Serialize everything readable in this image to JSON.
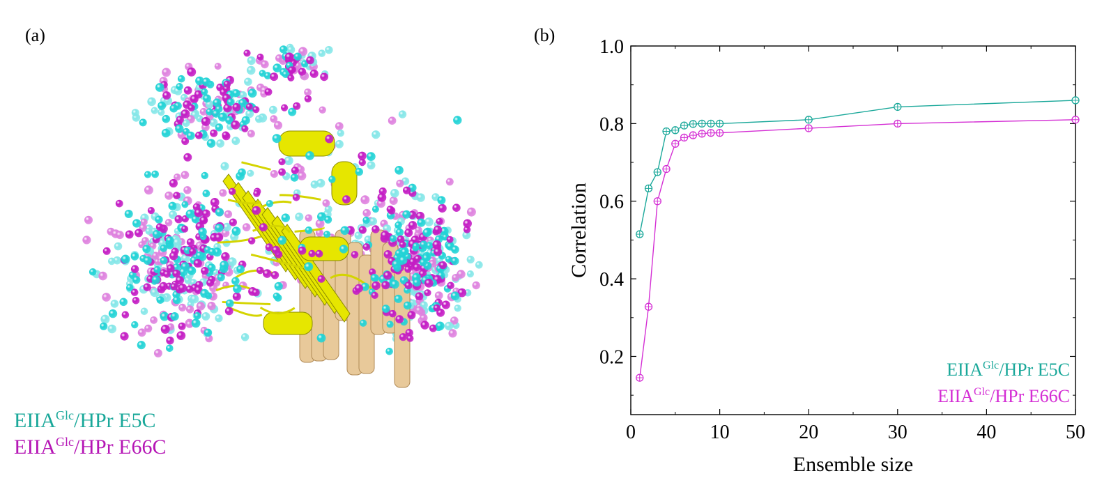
{
  "panel_a": {
    "label": "(a)",
    "legend": [
      {
        "base": "EIIA",
        "sup": "Glc",
        "rest": "/HPr E5C",
        "color": "#1aa89a"
      },
      {
        "base": "EIIA",
        "sup": "Glc",
        "rest": "/HPr E66C",
        "color": "#b516b5"
      }
    ],
    "colors": {
      "cyan_sphere": "#22d3d6",
      "magenta_sphere": "#c41cc4",
      "protein_yellow": "#e6e600",
      "protein_tan": "#e8c99a"
    }
  },
  "panel_b": {
    "label": "(b)"
  },
  "chart_data": {
    "type": "line",
    "title": "",
    "xlabel": "Ensemble size",
    "ylabel": "Correlation",
    "xlim": [
      0,
      50
    ],
    "ylim": [
      0.05,
      1.0
    ],
    "x_ticks": [
      0,
      10,
      20,
      30,
      40,
      50
    ],
    "y_ticks": [
      0.2,
      0.4,
      0.6,
      0.8,
      1.0
    ],
    "x_tick_labels": [
      "0",
      "10",
      "20",
      "30",
      "40",
      "50"
    ],
    "y_tick_labels": [
      "0.2",
      "0.4",
      "0.6",
      "0.8",
      "1.0"
    ],
    "grid": false,
    "legend_position": "bottom-right",
    "series": [
      {
        "name_base": "EIIA",
        "name_sup": "Glc",
        "name_rest": "/HPr E5C",
        "color": "#1aa89a",
        "x": [
          1,
          2,
          3,
          4,
          5,
          6,
          7,
          8,
          9,
          10,
          20,
          30,
          50
        ],
        "y": [
          0.515,
          0.633,
          0.675,
          0.78,
          0.783,
          0.795,
          0.799,
          0.8,
          0.8,
          0.8,
          0.81,
          0.843,
          0.86
        ]
      },
      {
        "name_base": "EIIA",
        "name_sup": "Glc",
        "name_rest": "/HPr E66C",
        "color": "#d42ed4",
        "x": [
          1,
          2,
          3,
          4,
          5,
          6,
          7,
          8,
          9,
          10,
          20,
          30,
          50
        ],
        "y": [
          0.145,
          0.328,
          0.6,
          0.683,
          0.748,
          0.764,
          0.77,
          0.774,
          0.776,
          0.776,
          0.788,
          0.8,
          0.81
        ]
      }
    ]
  }
}
